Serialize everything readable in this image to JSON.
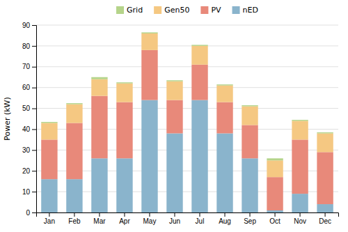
{
  "chart_data": {
    "type": "bar",
    "stacked": true,
    "categories": [
      "Jan",
      "Feb",
      "Mar",
      "Apr",
      "May",
      "Jun",
      "Jul",
      "Aug",
      "Sep",
      "Oct",
      "Nov",
      "Dec"
    ],
    "series": [
      {
        "name": "nED",
        "color": "#8ab4cc",
        "values": [
          16,
          16,
          26,
          26,
          54,
          38,
          54,
          38,
          26,
          1,
          9,
          4
        ]
      },
      {
        "name": "PV",
        "color": "#e8897a",
        "values": [
          19,
          27,
          30,
          27,
          24,
          16,
          17,
          15,
          16,
          16,
          26,
          25
        ]
      },
      {
        "name": "Gen50",
        "color": "#f5c882",
        "values": [
          8,
          9,
          8,
          9,
          8,
          9,
          9,
          8,
          9,
          8,
          9,
          9
        ]
      },
      {
        "name": "Grid",
        "color": "#b5d48a",
        "values": [
          0.5,
          0.5,
          1,
          0.5,
          0.5,
          0.5,
          0.5,
          0.5,
          0.5,
          1,
          0.5,
          0.5
        ]
      }
    ],
    "ylabel": "Power (kW)",
    "ylim": [
      0,
      90
    ],
    "yticks": [
      0,
      10,
      20,
      30,
      40,
      50,
      60,
      70,
      80,
      90
    ],
    "grid": true,
    "legend": "top"
  }
}
